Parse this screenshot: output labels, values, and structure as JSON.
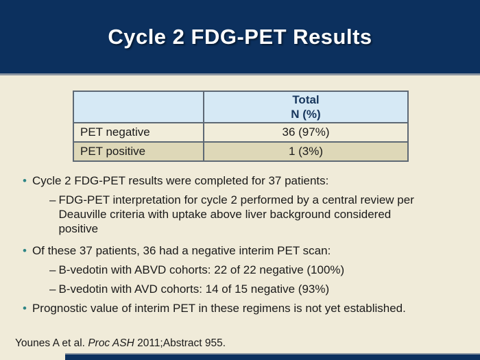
{
  "title": "Cycle 2 FDG-PET Results",
  "markers": {
    "dot": "•",
    "dash": "–"
  },
  "table": {
    "header_label": "Total\nN (%)",
    "rows": [
      {
        "label": "PET negative",
        "value": "36 (97%)"
      },
      {
        "label": "PET positive",
        "value": "1 (3%)"
      }
    ]
  },
  "bullets": {
    "b1": "Cycle 2 FDG-PET results were completed for 37 patients:",
    "b1_sub1": "FDG-PET interpretation for cycle 2 performed by a central review per\nDeauville criteria with uptake above liver background considered\npositive",
    "b2": "Of these 37 patients, 36 had a negative interim PET scan:",
    "b2_sub1": "B-vedotin with ABVD cohorts: 22 of 22 negative (100%)",
    "b2_sub2": "B-vedotin with AVD cohorts: 14 of 15 negative (93%)",
    "b3": "Prognostic value of interim PET in these regimens is not yet established."
  },
  "citation": {
    "prefix": "Younes A et al. ",
    "italic": "Proc ASH",
    "suffix": " 2011;Abstract 955."
  },
  "colors": {
    "header_navy": "#0c305e",
    "divider_gray": "#8b95a1",
    "background_cream": "#f0ebd9",
    "table_header_blue": "#d6e9f5",
    "table_row_cream": "#f1edda",
    "table_row_tan": "#ded8b8",
    "table_border_slate": "#5d6874",
    "bullet_teal": "#2e8585",
    "header_text_navy": "#17365d"
  }
}
